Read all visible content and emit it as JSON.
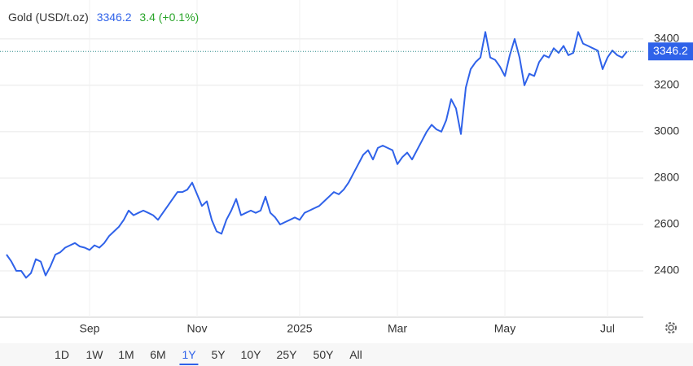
{
  "chart_data": {
    "type": "line",
    "title": "Gold (USD/t.oz)",
    "price": 3346.2,
    "change": "3.4 (+0.1%)",
    "categories": [
      null,
      null,
      null,
      null,
      null,
      null,
      null,
      null,
      null,
      null,
      null,
      null,
      null,
      null,
      null,
      null,
      null,
      "Sep",
      null,
      null,
      null,
      null,
      null,
      null,
      null,
      null,
      null,
      null,
      null,
      null,
      null,
      null,
      null,
      null,
      null,
      null,
      null,
      null,
      null,
      "Nov",
      null,
      null,
      null,
      null,
      null,
      null,
      null,
      null,
      null,
      null,
      null,
      null,
      null,
      null,
      null,
      null,
      null,
      null,
      null,
      null,
      "2025",
      null,
      null,
      null,
      null,
      null,
      null,
      null,
      null,
      null,
      null,
      null,
      null,
      null,
      null,
      null,
      null,
      null,
      null,
      null,
      "Mar",
      null,
      null,
      null,
      null,
      null,
      null,
      null,
      null,
      null,
      null,
      null,
      null,
      null,
      null,
      null,
      null,
      null,
      null,
      null,
      null,
      null,
      "May",
      null,
      null,
      null,
      null,
      null,
      null,
      null,
      null,
      null,
      null,
      null,
      null,
      null,
      null,
      null,
      null,
      null,
      null,
      null,
      null,
      "Jul",
      null,
      null,
      null,
      null
    ],
    "series": [
      {
        "name": "Gold",
        "color": "#2f62e9",
        "values": [
          2470,
          2440,
          2400,
          2400,
          2370,
          2390,
          2450,
          2440,
          2380,
          2420,
          2470,
          2480,
          2500,
          2510,
          2520,
          2505,
          2500,
          2490,
          2510,
          2500,
          2520,
          2550,
          2570,
          2590,
          2620,
          2660,
          2640,
          2650,
          2660,
          2650,
          2640,
          2620,
          2650,
          2680,
          2710,
          2740,
          2740,
          2750,
          2780,
          2730,
          2680,
          2700,
          2620,
          2570,
          2560,
          2620,
          2660,
          2710,
          2640,
          2650,
          2660,
          2650,
          2660,
          2720,
          2650,
          2630,
          2600,
          2610,
          2620,
          2630,
          2620,
          2650,
          2660,
          2670,
          2680,
          2700,
          2720,
          2740,
          2730,
          2750,
          2780,
          2820,
          2860,
          2900,
          2920,
          2880,
          2930,
          2940,
          2930,
          2920,
          2860,
          2890,
          2910,
          2880,
          2920,
          2960,
          3000,
          3030,
          3010,
          3000,
          3050,
          3140,
          3100,
          2990,
          3190,
          3270,
          3300,
          3320,
          3430,
          3320,
          3310,
          3280,
          3240,
          3330,
          3400,
          3320,
          3200,
          3250,
          3240,
          3300,
          3330,
          3320,
          3360,
          3340,
          3370,
          3330,
          3340,
          3430,
          3380,
          3370,
          3360,
          3350,
          3270,
          3320,
          3350,
          3330,
          3320,
          3346.2
        ]
      }
    ],
    "ylim": [
      2200,
      3568
    ],
    "yticks": [
      2400,
      2600,
      2800,
      3000,
      3200,
      3400
    ],
    "grid": true,
    "ranges": [
      "1D",
      "1W",
      "1M",
      "6M",
      "1Y",
      "5Y",
      "10Y",
      "25Y",
      "50Y",
      "All"
    ],
    "selected_range": "1Y"
  }
}
